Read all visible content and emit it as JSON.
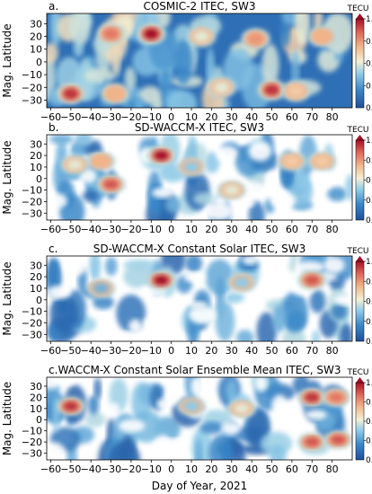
{
  "figure": {
    "xlabel": "Day of Year, 2021",
    "colorbar_unit": "TECU"
  },
  "chart_data": [
    {
      "type": "heatmap",
      "panel_letter": "a.",
      "title": "COSMIC-2 ITEC, SW3",
      "ylabel": "Mag. Latitude",
      "xlim": [
        -62,
        90
      ],
      "ylim": [
        -36,
        38
      ],
      "xticks": [
        -60,
        -50,
        -40,
        -30,
        -20,
        -10,
        0,
        10,
        20,
        30,
        40,
        50,
        60,
        70,
        80
      ],
      "yticks": [
        30,
        20,
        10,
        0,
        -10,
        -20,
        -30
      ],
      "colorbar": {
        "range": [
          0.2,
          1.0
        ],
        "ticks": [
          1.0,
          0.8,
          0.6,
          0.4
        ],
        "unit": "TECU"
      },
      "blobs": [
        {
          "x": -50,
          "y": -25,
          "v": 0.95
        },
        {
          "x": -10,
          "y": 22,
          "v": 1.0
        },
        {
          "x": -30,
          "y": 22,
          "v": 0.85
        },
        {
          "x": -28,
          "y": -25,
          "v": 0.75
        },
        {
          "x": 50,
          "y": -22,
          "v": 0.95
        },
        {
          "x": 42,
          "y": 18,
          "v": 0.8
        },
        {
          "x": 62,
          "y": -23,
          "v": 0.7
        },
        {
          "x": 75,
          "y": 20,
          "v": 0.75
        },
        {
          "x": 15,
          "y": 20,
          "v": 0.6
        },
        {
          "x": 25,
          "y": -20,
          "v": 0.6
        }
      ]
    },
    {
      "type": "heatmap",
      "panel_letter": "b.",
      "title": "SD-WACCM-X ITEC, SW3",
      "ylabel": "Mag. Latitude",
      "xlim": [
        -62,
        90
      ],
      "ylim": [
        -36,
        38
      ],
      "xticks": [
        -60,
        -50,
        -40,
        -30,
        -20,
        -10,
        0,
        10,
        20,
        30,
        40,
        50,
        60,
        70,
        80
      ],
      "yticks": [
        30,
        20,
        10,
        0,
        -10,
        -20,
        -30
      ],
      "colorbar": {
        "range": [
          0.2,
          1.0
        ],
        "ticks": [
          1.0,
          0.8,
          0.6,
          0.4
        ],
        "unit": "TECU"
      },
      "blobs": [
        {
          "x": -5,
          "y": 20,
          "v": 1.0
        },
        {
          "x": -35,
          "y": 15,
          "v": 0.75
        },
        {
          "x": -30,
          "y": -5,
          "v": 0.9
        },
        {
          "x": -48,
          "y": 12,
          "v": 0.6
        },
        {
          "x": 60,
          "y": 15,
          "v": 0.7
        },
        {
          "x": 75,
          "y": 15,
          "v": 0.7
        },
        {
          "x": 30,
          "y": -10,
          "v": 0.6
        },
        {
          "x": 10,
          "y": 10,
          "v": 0.5
        }
      ]
    },
    {
      "type": "heatmap",
      "panel_letter": "c.",
      "title": "SD-WACCM-X Constant Solar ITEC, SW3",
      "ylabel": "Mag. Latitude",
      "xlim": [
        -62,
        90
      ],
      "ylim": [
        -36,
        38
      ],
      "xticks": [
        -60,
        -50,
        -40,
        -30,
        -20,
        -10,
        0,
        10,
        20,
        30,
        40,
        50,
        60,
        70,
        80
      ],
      "yticks": [
        30,
        20,
        10,
        0,
        -10,
        -20,
        -30
      ],
      "colorbar": {
        "range": [
          0.2,
          1.0
        ],
        "ticks": [
          1.0,
          0.8,
          0.6,
          0.4
        ],
        "unit": "TECU"
      },
      "blobs": [
        {
          "x": -5,
          "y": 17,
          "v": 1.0
        },
        {
          "x": 70,
          "y": 17,
          "v": 0.9
        },
        {
          "x": 35,
          "y": 15,
          "v": 0.5
        },
        {
          "x": -35,
          "y": 10,
          "v": 0.45
        }
      ]
    },
    {
      "type": "heatmap",
      "panel_letter": "c.",
      "title": "WACCM-X Constant Solar Ensemble Mean ITEC, SW3",
      "ylabel": "Mag. Latitude",
      "xlim": [
        -62,
        90
      ],
      "ylim": [
        -36,
        38
      ],
      "xticks": [
        -60,
        -50,
        -40,
        -30,
        -20,
        -10,
        0,
        10,
        20,
        30,
        40,
        50,
        60,
        70,
        80
      ],
      "yticks": [
        30,
        20,
        10,
        0,
        -10,
        -20,
        -30
      ],
      "colorbar": {
        "range": [
          0.2,
          1.0
        ],
        "ticks": [
          1.0,
          0.8,
          0.6,
          0.4
        ],
        "unit": "TECU"
      },
      "blobs": [
        {
          "x": -50,
          "y": 12,
          "v": 0.95
        },
        {
          "x": 70,
          "y": 20,
          "v": 0.95
        },
        {
          "x": 82,
          "y": 20,
          "v": 0.85
        },
        {
          "x": 70,
          "y": -20,
          "v": 0.9
        },
        {
          "x": 83,
          "y": -18,
          "v": 0.9
        },
        {
          "x": 35,
          "y": 10,
          "v": 0.6
        },
        {
          "x": 10,
          "y": 12,
          "v": 0.5
        }
      ]
    }
  ]
}
